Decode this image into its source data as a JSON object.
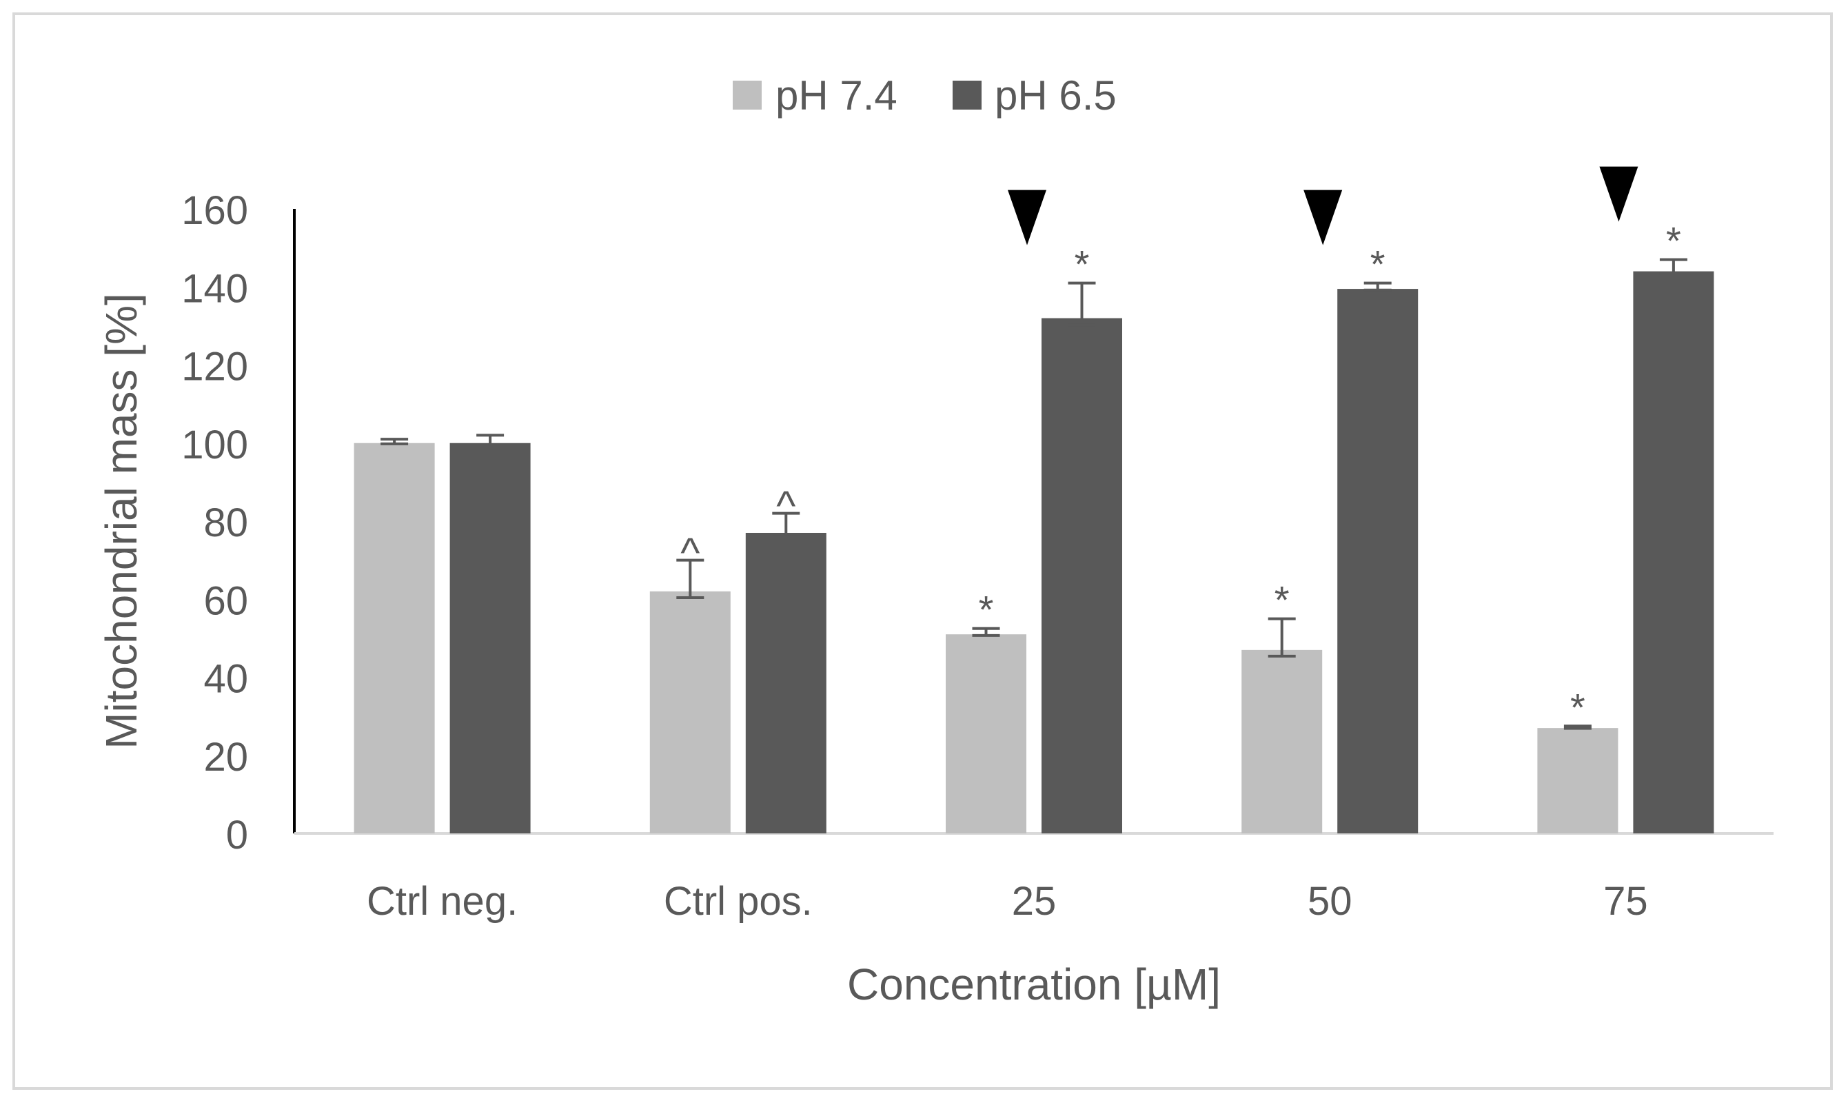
{
  "chart_data": {
    "type": "bar",
    "title": "",
    "xlabel": "Concentration [µM]",
    "ylabel": "Mitochondrial mass [%]",
    "ylim": [
      0,
      160
    ],
    "yticks": [
      0,
      20,
      40,
      60,
      80,
      100,
      120,
      140,
      160
    ],
    "categories": [
      "Ctrl neg.",
      "Ctrl pos.",
      "25",
      "50",
      "75"
    ],
    "legend_position": "top-center",
    "series": [
      {
        "name": "pH 7.4",
        "color": "#bfbfbf",
        "values": [
          100,
          62,
          51,
          47,
          27
        ],
        "errors": [
          1,
          8,
          1.5,
          8,
          0.5
        ],
        "markers": [
          "",
          "^",
          "*",
          "*",
          "*"
        ]
      },
      {
        "name": "pH 6.5",
        "color": "#595959",
        "values": [
          100,
          77,
          132,
          139.5,
          144
        ],
        "errors": [
          2,
          5,
          9,
          1.5,
          3
        ],
        "markers": [
          "",
          "^",
          "*",
          "*",
          "*"
        ]
      }
    ],
    "arrow_categories": [
      "25",
      "50",
      "75"
    ],
    "colors": {
      "axis_text": "#595959",
      "axis_line": "#000000",
      "baseline": "#d9d9d9",
      "arrow": "#000000"
    }
  }
}
